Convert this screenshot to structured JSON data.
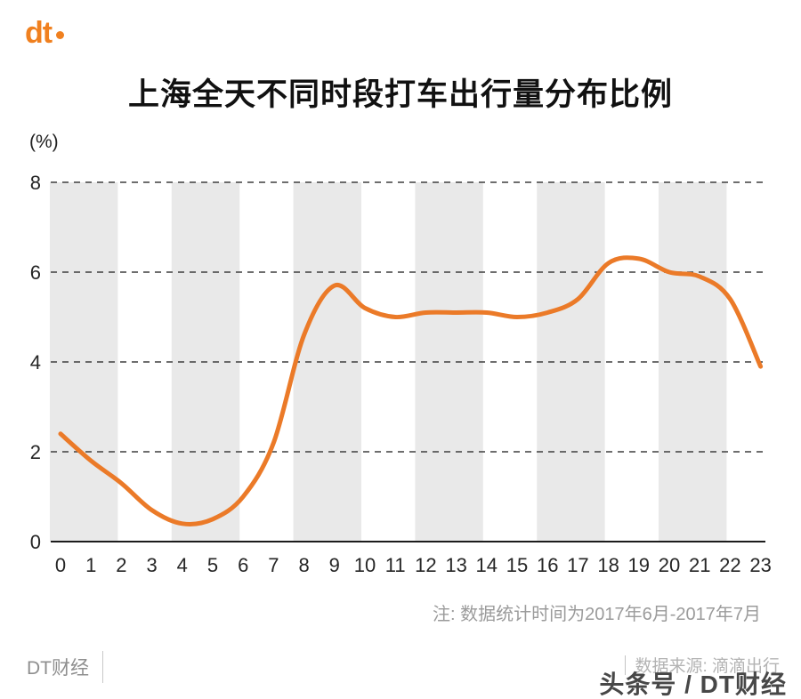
{
  "page": {
    "logo_text": "dt",
    "title": "上海全天不同时段打车出行量分布比例",
    "note": "注: 数据统计时间为2017年6月-2017年7月",
    "footer_left": "DT财经",
    "footer_source": "数据来源: 滴滴出行",
    "watermark": "头条号 / DT财经"
  },
  "chart_data": {
    "type": "line",
    "title": "上海全天不同时段打车出行量分布比例",
    "unit_label": "(%)",
    "xlabel": "",
    "ylabel": "%",
    "x": [
      0,
      1,
      2,
      3,
      4,
      5,
      6,
      7,
      8,
      9,
      10,
      11,
      12,
      13,
      14,
      15,
      16,
      17,
      18,
      19,
      20,
      21,
      22,
      23
    ],
    "values": [
      2.4,
      1.8,
      1.3,
      0.7,
      0.4,
      0.5,
      1.0,
      2.2,
      4.6,
      5.7,
      5.2,
      5.0,
      5.1,
      5.1,
      5.1,
      5.0,
      5.1,
      5.4,
      6.2,
      6.3,
      6.0,
      5.9,
      5.4,
      3.9
    ],
    "ylim": [
      0,
      8
    ],
    "yticks": [
      0,
      2,
      4,
      6,
      8
    ],
    "grid": "dashed-horizontal",
    "legend": "none",
    "line_color": "#EB7A28",
    "band_color": "#E9E9E9",
    "band_start_hours": [
      0,
      4,
      8,
      12,
      16,
      20
    ],
    "band_span_hours": 2
  }
}
